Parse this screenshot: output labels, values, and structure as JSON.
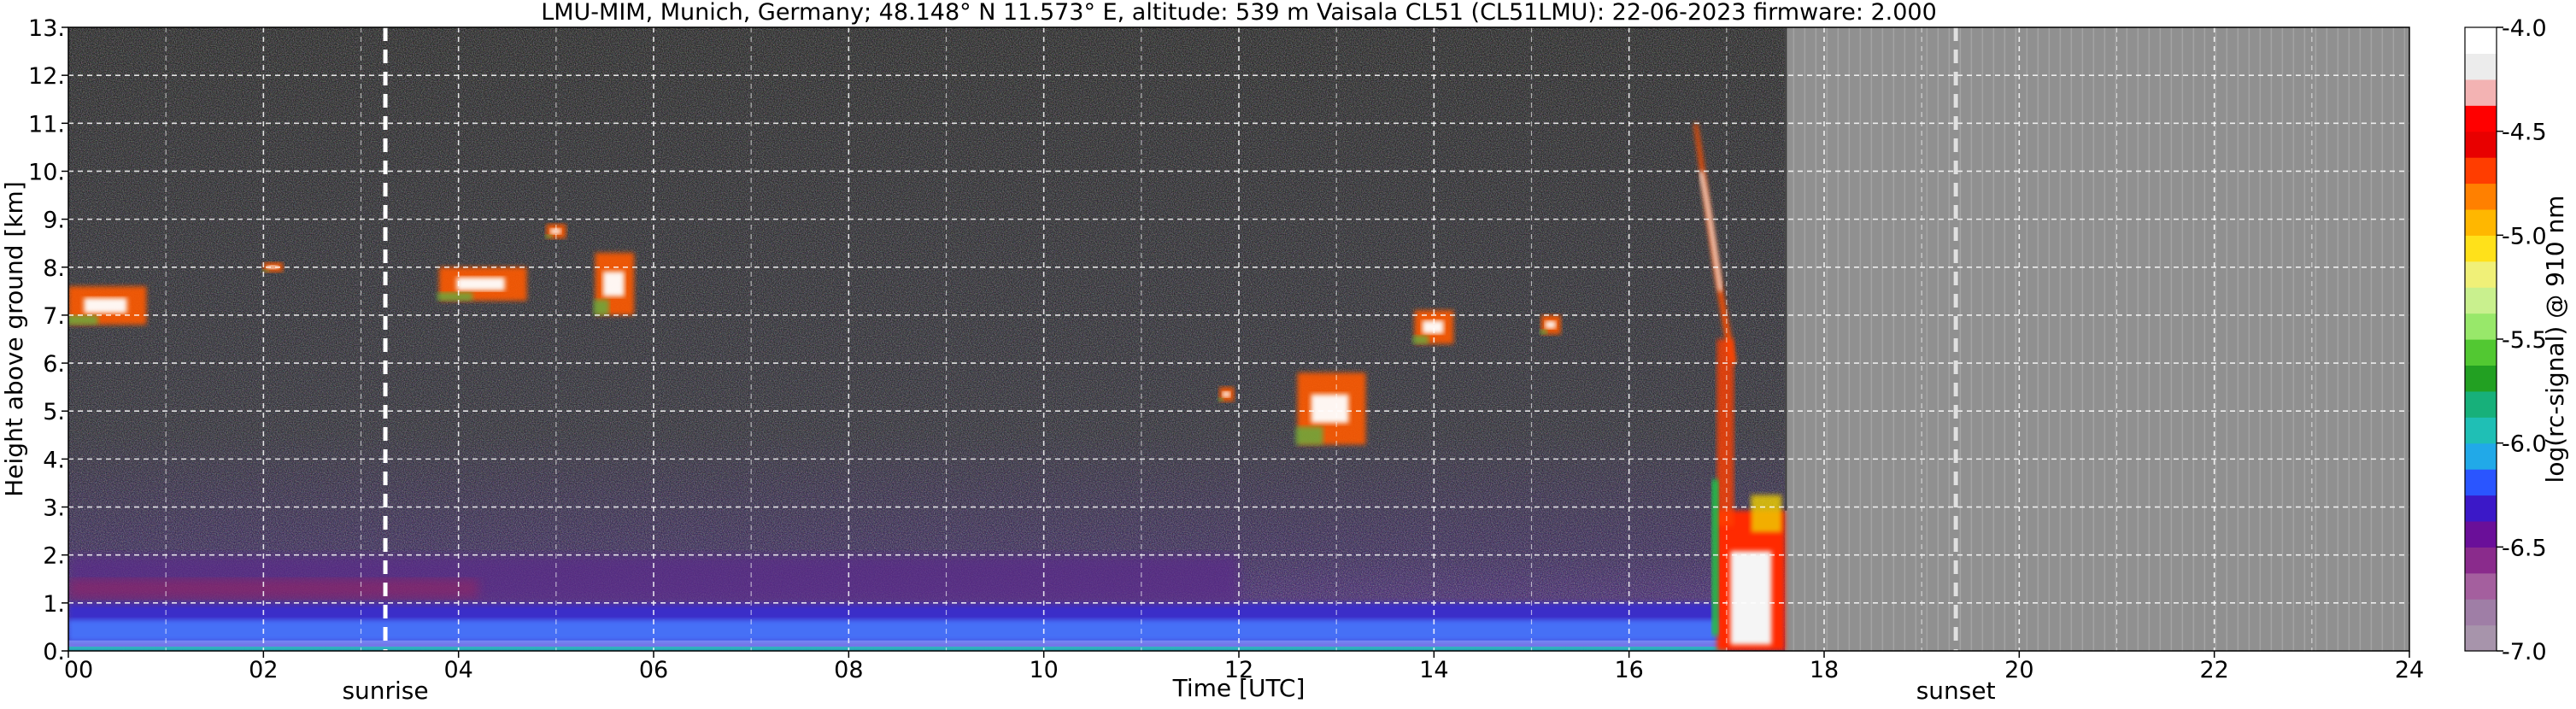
{
  "chart_data": {
    "type": "heatmap",
    "title": "LMU-MIM, Munich, Germany; 48.148° N 11.573° E, altitude: 539 m    Vaisala CL51 (CL51LMU): 22-06-2023    firmware: 2.000",
    "xlabel": "Time [UTC]",
    "ylabel": "Height above ground [km]",
    "xlim": [
      0,
      24
    ],
    "ylim": [
      0,
      13
    ],
    "x_ticks": [
      "00",
      "02",
      "04",
      "06",
      "08",
      "10",
      "12",
      "14",
      "16",
      "18",
      "20",
      "22",
      "24"
    ],
    "y_ticks": [
      "0.",
      "1.",
      "2.",
      "3.",
      "4.",
      "5.",
      "6.",
      "7.",
      "8.",
      "9.",
      "10.",
      "11.",
      "12.",
      "13."
    ],
    "grid": true,
    "data_end_time_utc": 17.6,
    "no_data_color": "#909090",
    "annotations": [
      {
        "label": "sunrise",
        "time_utc": 3.25
      },
      {
        "label": "sunset",
        "time_utc": 19.35
      }
    ],
    "features": [
      {
        "name": "boundary layer aerosol",
        "t_start": 0.0,
        "t_end": 17.0,
        "h_low": 0.0,
        "h_high": 1.0
      },
      {
        "name": "residual layer",
        "t_start": 0.0,
        "t_end": 12.0,
        "h_low": 1.0,
        "h_high": 2.0
      },
      {
        "name": "cirrus",
        "t_start": 0.0,
        "t_end": 0.8,
        "h_low": 6.8,
        "h_high": 7.6
      },
      {
        "name": "cirrus",
        "t_start": 2.0,
        "t_end": 2.2,
        "h_low": 7.9,
        "h_high": 8.1
      },
      {
        "name": "cirrus",
        "t_start": 3.8,
        "t_end": 4.7,
        "h_low": 7.3,
        "h_high": 8.0
      },
      {
        "name": "cirrus",
        "t_start": 4.9,
        "t_end": 5.1,
        "h_low": 8.6,
        "h_high": 8.9
      },
      {
        "name": "cirrus",
        "t_start": 5.4,
        "t_end": 5.8,
        "h_low": 7.0,
        "h_high": 8.3
      },
      {
        "name": "cirrus",
        "t_start": 11.8,
        "t_end": 11.95,
        "h_low": 5.2,
        "h_high": 5.5
      },
      {
        "name": "cirrus",
        "t_start": 12.6,
        "t_end": 13.3,
        "h_low": 4.3,
        "h_high": 5.8
      },
      {
        "name": "cirrus",
        "t_start": 13.8,
        "t_end": 14.2,
        "h_low": 6.4,
        "h_high": 7.1
      },
      {
        "name": "cirrus",
        "t_start": 15.1,
        "t_end": 15.3,
        "h_low": 6.6,
        "h_high": 7.0
      },
      {
        "name": "cirrus fall streak",
        "t_start": 16.7,
        "t_end": 17.1,
        "h_low": 6.0,
        "h_high": 11.0
      },
      {
        "name": "precipitating cloud",
        "t_start": 16.9,
        "t_end": 17.6,
        "h_low": 0.0,
        "h_high": 6.5
      }
    ],
    "colorbar": {
      "label": "log(rc-signal) @ 910 nm",
      "range": [
        -7.0,
        -4.0
      ],
      "ticks": [
        "-4.0",
        "-4.5",
        "-5.0",
        "-5.5",
        "-6.0",
        "-6.5",
        "-7.0"
      ],
      "colors": [
        "#a794ab",
        "#9f7ea6",
        "#a45f9e",
        "#8a2b8c",
        "#6a0f99",
        "#3b18c8",
        "#2a55ff",
        "#21a9e8",
        "#1fbfb5",
        "#17b07a",
        "#22a022",
        "#52c832",
        "#98e86a",
        "#c9f08e",
        "#f0f078",
        "#ffe11a",
        "#ffb700",
        "#ff8000",
        "#ff3d00",
        "#e80000",
        "#ff0000",
        "#f3b3b3",
        "#ececec",
        "#ffffff"
      ]
    }
  }
}
